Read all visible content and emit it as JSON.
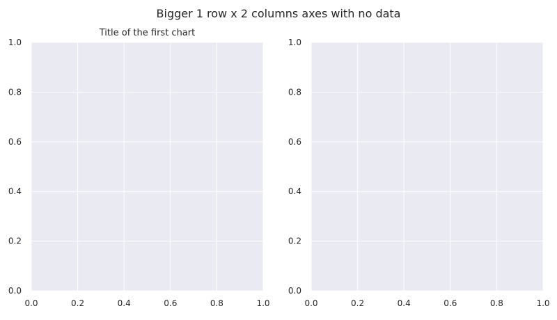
{
  "figure": {
    "suptitle": "Bigger 1 row x 2 columns axes with no data"
  },
  "colors": {
    "axes_background": "#eaeaf2",
    "grid": "#ffffff",
    "text": "#262626"
  },
  "chart_data": [
    {
      "type": "scatter",
      "title": "Title of the first chart",
      "xlabel": "",
      "ylabel": "",
      "xlim": [
        0.0,
        1.0
      ],
      "ylim": [
        0.0,
        1.0
      ],
      "xticks": [
        "0.0",
        "0.2",
        "0.4",
        "0.6",
        "0.8",
        "1.0"
      ],
      "yticks": [
        "0.0",
        "0.2",
        "0.4",
        "0.6",
        "0.8",
        "1.0"
      ],
      "grid": true,
      "series": []
    },
    {
      "type": "scatter",
      "title": "",
      "xlabel": "",
      "ylabel": "",
      "xlim": [
        0.0,
        1.0
      ],
      "ylim": [
        0.0,
        1.0
      ],
      "xticks": [
        "0.0",
        "0.2",
        "0.4",
        "0.6",
        "0.8",
        "1.0"
      ],
      "yticks": [
        "0.0",
        "0.2",
        "0.4",
        "0.6",
        "0.8",
        "1.0"
      ],
      "grid": true,
      "series": []
    }
  ]
}
